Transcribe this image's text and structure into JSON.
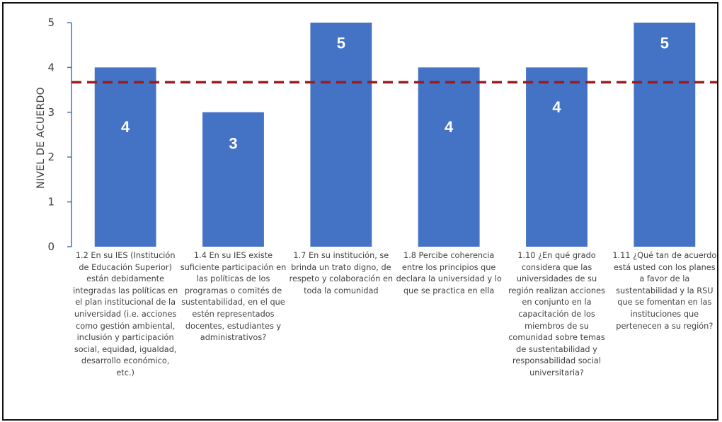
{
  "chart_data": {
    "type": "bar",
    "ylabel": "NIVEL DE ACUERDO",
    "xlabel": "",
    "title": "",
    "ylim": [
      0,
      5
    ],
    "yticks": [
      "0",
      "1",
      "2",
      "3",
      "4",
      "5"
    ],
    "categories": [
      "1.2 En su IES (Institución de Educación Superior) están debidamente integradas las políticas en el plan institucional de la universidad (i.e. acciones como gestión ambiental, inclusión y participación social, equidad, igualdad, desarrollo económico, etc.)",
      "1.4 En su IES existe suficiente participación en las políticas de los programas o comités de sustentabilidad, en el que estén representados docentes, estudiantes y administrativos?",
      "1.7 En su institución, se brinda un trato digno, de respeto y colaboración en toda la comunidad",
      "1.8 Percibe coherencia entre los principios que declara la universidad y lo que se practica en ella",
      "1.10 ¿En qué grado considera que las universidades de su región realizan acciones en conjunto en la capacitación de los miembros de su comunidad sobre temas de sustentabilidad y responsabilidad social universitaria?",
      "1.11 ¿Qué tan de acuerdo está usted con los planes a favor de la sustentabilidad y la RSU que se fomentan en las instituciones que pertenecen a su región?"
    ],
    "values": [
      4,
      3,
      5,
      4,
      4,
      5
    ],
    "data_labels": [
      "4",
      "3",
      "5",
      "4",
      "4",
      "5"
    ],
    "reference_line": {
      "value": 3.67,
      "style": "dashed"
    },
    "grid": false,
    "legend": "none",
    "colors": {
      "bar": "#4472C4",
      "reference_line": "#9B1B1B",
      "axis": "#4472C4",
      "text": "#404040"
    }
  }
}
